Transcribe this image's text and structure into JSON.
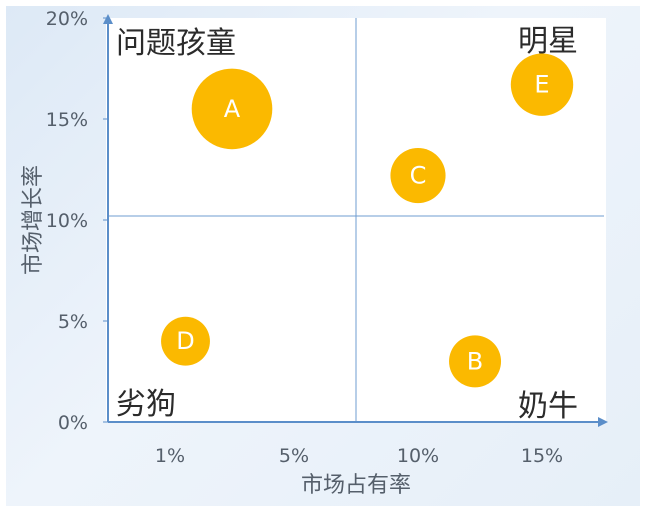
{
  "chart_data": {
    "type": "scatter",
    "xlabel": "市场占有率",
    "ylabel": "市场增长率",
    "x_ticks": [
      "1%",
      "5%",
      "10%",
      "15%"
    ],
    "y_ticks": [
      "0%",
      "5%",
      "10%",
      "15%",
      "20%"
    ],
    "ylim": [
      0,
      20
    ],
    "quadrant_split": {
      "x": 7.5,
      "y": 10.2
    },
    "quadrants": [
      {
        "name": "问题孩童",
        "position": "top-left"
      },
      {
        "name": "明星",
        "position": "top-right"
      },
      {
        "name": "劣狗",
        "position": "bottom-left"
      },
      {
        "name": "奶牛",
        "position": "bottom-right"
      }
    ],
    "points": [
      {
        "label": "A",
        "x": 3.0,
        "y": 15.5,
        "size": 1.55
      },
      {
        "label": "B",
        "x": 12.3,
        "y": 3.0,
        "size": 1.0
      },
      {
        "label": "C",
        "x": 10.0,
        "y": 12.2,
        "size": 1.06
      },
      {
        "label": "D",
        "x": 1.5,
        "y": 4.0,
        "size": 0.94
      },
      {
        "label": "E",
        "x": 15.0,
        "y": 16.7,
        "size": 1.2
      }
    ],
    "color": "#fbb900",
    "grid": false
  }
}
